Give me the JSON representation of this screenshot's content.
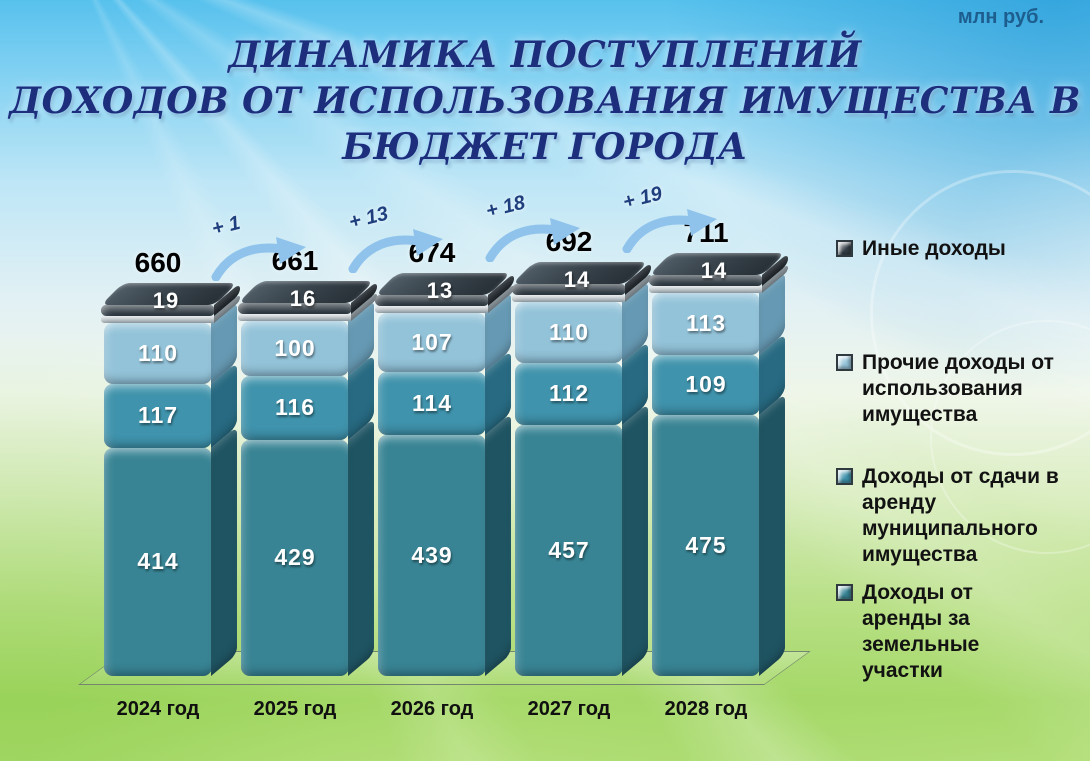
{
  "unit_label": "млн руб.",
  "title": {
    "line1": "ДИНАМИКА ПОСТУПЛЕНИЙ",
    "line2": "ДОХОДОВ ОТ ИСПОЛЬЗОВАНИЯ ИМУЩЕСТВА В",
    "line3": "БЮДЖЕТ ГОРОДА"
  },
  "chart_data": {
    "type": "bar",
    "subtype": "stacked-3d-column",
    "unit": "млн руб.",
    "title": "ДИНАМИКА ПОСТУПЛЕНИЙ ДОХОДОВ ОТ ИСПОЛЬЗОВАНИЯ ИМУЩЕСТВА В БЮДЖЕТ ГОРОДА",
    "categories": [
      "2024 год",
      "2025 год",
      "2026 год",
      "2027 год",
      "2028 год"
    ],
    "totals": [
      660,
      661,
      674,
      692,
      711
    ],
    "deltas": [
      "+ 1",
      "+ 13",
      "+ 18",
      "+ 19"
    ],
    "series": [
      {
        "name": "Доходы от аренды за земельные участки",
        "color": "#388494",
        "side_color": "#1F5462",
        "values": [
          414,
          429,
          439,
          457,
          475
        ]
      },
      {
        "name": "Доходы от сдачи в аренду муниципального имущества",
        "color": "#3F93AC",
        "side_color": "#276A82",
        "values": [
          117,
          116,
          114,
          112,
          109
        ]
      },
      {
        "name": "Прочие доходы от использования имущества",
        "color": "#93C3D9",
        "side_color": "#6699B3",
        "values": [
          110,
          100,
          107,
          110,
          113
        ]
      },
      {
        "name": "Иные доходы",
        "color": "#333E46",
        "side_color": "#20272D",
        "values": [
          19,
          16,
          13,
          14,
          14
        ]
      }
    ],
    "legend": [
      "Иные доходы",
      "Прочие доходы от использования имущества",
      "Доходы от сдачи в аренду муниципального имущества",
      "Доходы от аренды за земельные участки"
    ],
    "legend_position": "right",
    "value_labels": "inside-white",
    "axis": {
      "x_visible": true,
      "y_visible": false
    }
  },
  "colors": {
    "title": "#1C2E7C",
    "unit_label": "#1D5E8F",
    "delta_text": "#1F3E7E",
    "arrow": "#8FC3EC",
    "total_label": "#000000",
    "category_label": "#101010",
    "legend_text": "#121212"
  }
}
